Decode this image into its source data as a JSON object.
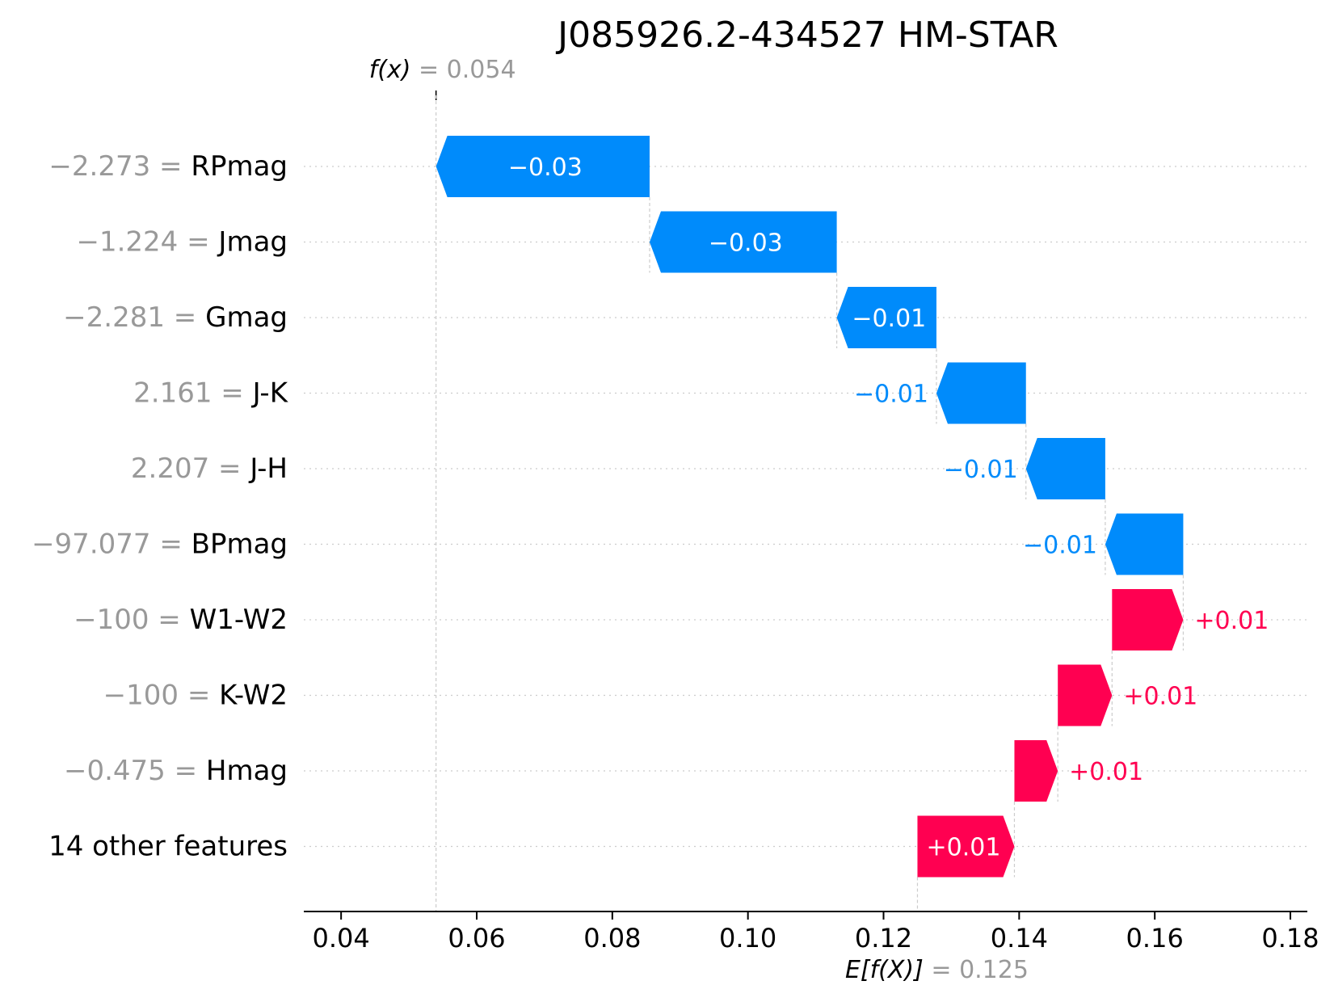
{
  "chart_data": {
    "type": "waterfall",
    "title": "J085926.2-434527 HM-STAR",
    "fx_label": "f(x)",
    "fx_value": "0.054",
    "ex_label": "E[f(X)]",
    "ex_value": "0.125",
    "fx": 0.054,
    "base_value": 0.125,
    "xlim": [
      0.0345,
      0.1825
    ],
    "xticks": [
      0.04,
      0.06,
      0.08,
      0.1,
      0.12,
      0.14,
      0.16,
      0.18
    ],
    "xtick_labels": [
      "0.04",
      "0.06",
      "0.08",
      "0.10",
      "0.12",
      "0.14",
      "0.16",
      "0.18"
    ],
    "rows": [
      {
        "feature_value": "−2.273",
        "feature": "RPmag",
        "start": 0.0855,
        "end": 0.054,
        "label": "−0.03"
      },
      {
        "feature_value": "−1.224",
        "feature": "Jmag",
        "start": 0.1131,
        "end": 0.0855,
        "label": "−0.03"
      },
      {
        "feature_value": "−2.281",
        "feature": "Gmag",
        "start": 0.1278,
        "end": 0.1131,
        "label": "−0.01"
      },
      {
        "feature_value": "2.161",
        "feature": "J-K",
        "start": 0.141,
        "end": 0.1278,
        "label": "−0.01"
      },
      {
        "feature_value": "2.207",
        "feature": "J-H",
        "start": 0.1527,
        "end": 0.141,
        "label": "−0.01"
      },
      {
        "feature_value": "−97.077",
        "feature": "BPmag",
        "start": 0.1642,
        "end": 0.1527,
        "label": "−0.01"
      },
      {
        "feature_value": "−100",
        "feature": "W1-W2",
        "start": 0.1537,
        "end": 0.1642,
        "label": "+0.01"
      },
      {
        "feature_value": "−100",
        "feature": "K-W2",
        "start": 0.1457,
        "end": 0.1537,
        "label": "+0.01"
      },
      {
        "feature_value": "−0.475",
        "feature": "Hmag",
        "start": 0.1393,
        "end": 0.1457,
        "label": "+0.01"
      },
      {
        "feature_value": "",
        "feature": "14 other features",
        "start": 0.125,
        "end": 0.1393,
        "label": "+0.01"
      }
    ],
    "colors": {
      "negative": "#008bfb",
      "positive": "#ff0051",
      "value_text": "#999999",
      "label_text": "#000000",
      "grid": "#cccccc",
      "axis": "#000000"
    }
  }
}
